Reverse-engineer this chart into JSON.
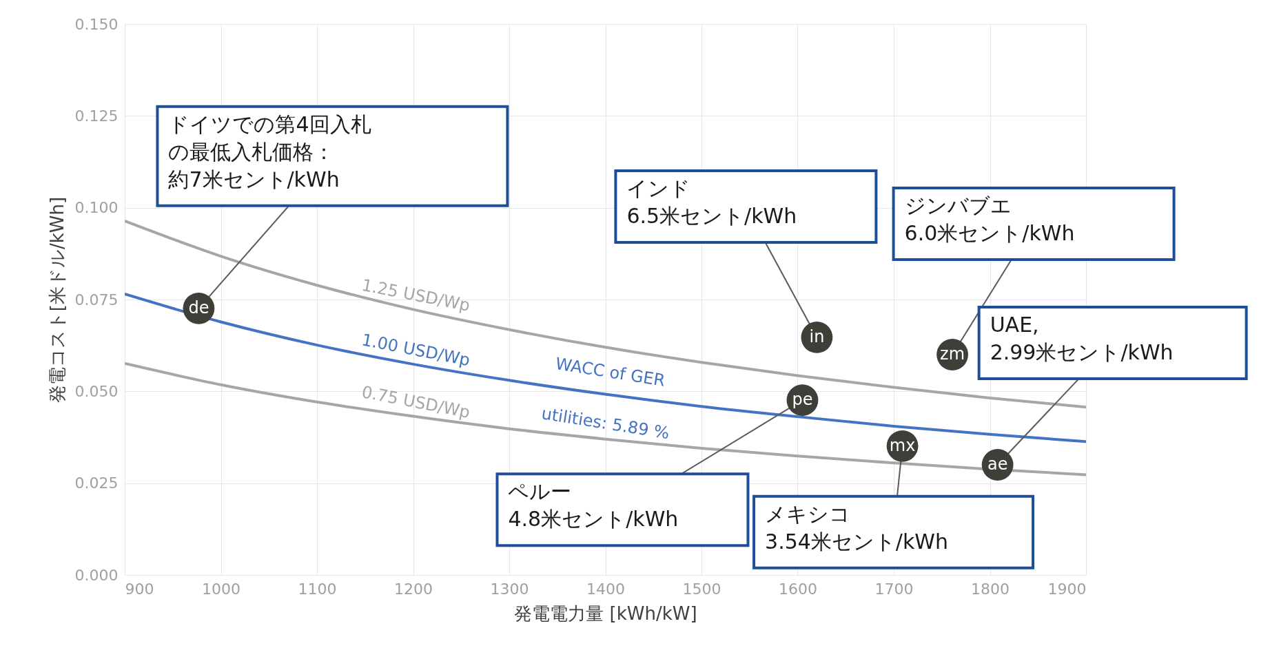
{
  "chart_data": {
    "type": "line",
    "xlabel": "発電電力量 [kWh/kW]",
    "ylabel": "発電コスト[米ドル/kWh]",
    "x": [
      900,
      1000,
      1100,
      1200,
      1300,
      1400,
      1500,
      1600,
      1700,
      1800,
      1900
    ],
    "xlim": [
      900,
      1900
    ],
    "xticks": [
      900,
      1000,
      1100,
      1200,
      1300,
      1400,
      1500,
      1600,
      1700,
      1800,
      1900
    ],
    "ylim": [
      0,
      0.15
    ],
    "yticks": [
      {
        "value": 0,
        "label": "0.000"
      },
      0.025,
      {
        "value": 0.05,
        "label": "0.050"
      },
      0.075,
      {
        "value": 0.1,
        "label": "0.100"
      },
      0.125,
      {
        "value": 0.15,
        "label": "0.150"
      }
    ],
    "grid": true,
    "line_style": "solid",
    "series": [
      {
        "name": "1.25 USD/Wp",
        "color": "#a6a6a6",
        "values": [
          0.0964,
          0.0868,
          0.0789,
          0.0723,
          0.0668,
          0.062,
          0.0579,
          0.0543,
          0.0511,
          0.0482,
          0.0457
        ]
      },
      {
        "name": "1.00 USD/Wp",
        "color": "#4472c4",
        "values": [
          0.0765,
          0.0689,
          0.0626,
          0.0574,
          0.053,
          0.0492,
          0.0459,
          0.0431,
          0.0405,
          0.0383,
          0.0363
        ]
      },
      {
        "name": "0.75 USD/Wp",
        "color": "#a6a6a6",
        "values": [
          0.0576,
          0.0518,
          0.0471,
          0.0432,
          0.0398,
          0.037,
          0.0345,
          0.0324,
          0.0305,
          0.0288,
          0.0273
        ]
      },
      {
        "type": "scatter",
        "marker": "circle",
        "color": "#3f3f37",
        "x": [
          977,
          1620,
          1761,
          1605,
          1709,
          1808
        ],
        "values": [
          0.0726,
          0.0647,
          0.06,
          0.0476,
          0.0351,
          0.03
        ],
        "value_labels": [
          "de",
          "in",
          "zm",
          "pe",
          "mx",
          "ae"
        ]
      }
    ],
    "annotations": [
      {
        "text": "ドイツでの第4回入札",
        "x": 977,
        "y": 0.0726
      },
      "の最低入札価格：",
      "約7米セント/kWh",
      {
        "text": "インド\n6.5米セント/kWh",
        "x": 1620,
        "y": 0.0647
      },
      {
        "text": "ジンバブエ\n6.0米セント/kWh",
        "x": 1761,
        "y": 0.06
      },
      {
        "text": "UAE,\n2.99米セント/kWh",
        "x": 1808,
        "y": 0.03
      },
      {
        "text": "ペルー\n4.8米セント/kWh",
        "x": 1605,
        "y": 0.0476
      },
      {
        "text": "メキシコ\n3.54米セント/kWh",
        "x": 1709,
        "y": 0.0351
      },
      "WACC of GER",
      "utilities: 5.89 %"
    ]
  }
}
